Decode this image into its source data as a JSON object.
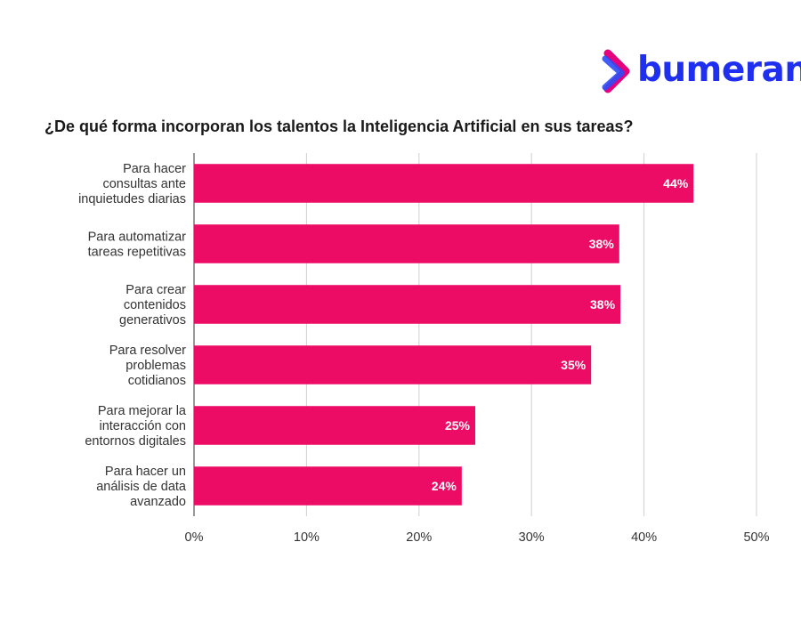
{
  "brand": {
    "name": "bumeran",
    "colors": {
      "text": "#1e2ff0",
      "magenta": "#e5007e",
      "blue": "#2d4bf5"
    }
  },
  "chart_data": {
    "type": "bar",
    "orientation": "horizontal",
    "title": "¿De qué forma incorporan los talentos la Inteligencia Artificial en sus tareas?",
    "categories": [
      [
        "Para hacer",
        "consultas ante",
        "inquietudes diarias"
      ],
      [
        "Para automatizar",
        "tareas repetitivas"
      ],
      [
        "Para crear",
        "contenidos",
        "generativos"
      ],
      [
        "Para resolver",
        "problemas",
        "cotidianos"
      ],
      [
        "Para mejorar la",
        "interacción con",
        "entornos digitales"
      ],
      [
        "Para hacer un",
        "análisis de data",
        "avanzado"
      ]
    ],
    "values": [
      44.4,
      37.8,
      37.9,
      35.3,
      25,
      23.8
    ],
    "data_labels": [
      "44%",
      "38%",
      "38%",
      "35%",
      "25%",
      "24%"
    ],
    "xlim": [
      0,
      50
    ],
    "xticks": [
      0,
      10,
      20,
      30,
      40,
      50
    ],
    "xtick_labels": [
      "0%",
      "10%",
      "20%",
      "30%",
      "40%",
      "50%"
    ],
    "bar_color": "#ec0c65",
    "grid": true,
    "legend": false
  }
}
